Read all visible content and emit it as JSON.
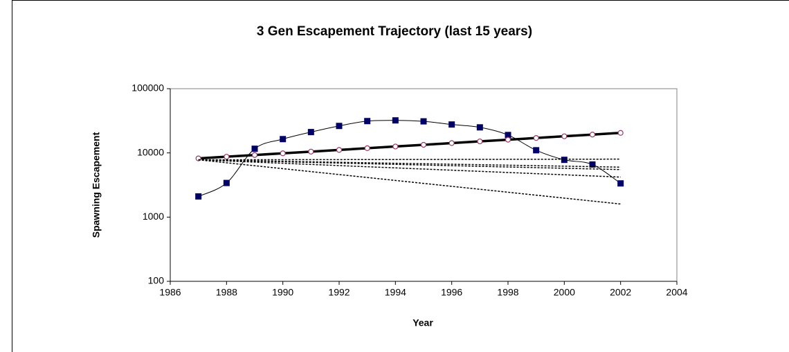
{
  "chart_data": {
    "type": "line",
    "title": "3 Gen  Escapement Trajectory (last 15 years)",
    "x_label": "Year",
    "y_label": "Spawning Escapement",
    "x": [
      1987,
      1988,
      1989,
      1990,
      1991,
      1992,
      1993,
      1994,
      1995,
      1996,
      1997,
      1998,
      1999,
      2000,
      2001,
      2002
    ],
    "series": [
      {
        "color": "#000066",
        "marker": "square",
        "style": "smooth",
        "values": [
          2100,
          3400,
          11600,
          16400,
          21100,
          26300,
          31300,
          32100,
          31000,
          27700,
          25000,
          19000,
          11000,
          7800,
          6600,
          3350
        ]
      },
      {
        "color": "#993366",
        "marker": "circle",
        "style": "thick",
        "values": [
          8200,
          8720,
          9270,
          9850,
          10470,
          11130,
          11830,
          12580,
          13370,
          14210,
          15110,
          16060,
          17070,
          18150,
          19290,
          20500
        ]
      },
      {
        "color": "#000000",
        "style": "dotted",
        "x": [
          1987,
          2002
        ],
        "values": [
          7800,
          8000
        ]
      },
      {
        "color": "#000000",
        "style": "dotted",
        "x": [
          1987,
          2002
        ],
        "values": [
          7800,
          6000
        ]
      },
      {
        "color": "#000000",
        "style": "dotted",
        "x": [
          1987,
          2002
        ],
        "values": [
          7800,
          5500
        ]
      },
      {
        "color": "#000000",
        "style": "dotted",
        "x": [
          1987,
          2002
        ],
        "values": [
          7800,
          4200
        ]
      },
      {
        "color": "#000000",
        "style": "dotted",
        "x": [
          1987,
          2002
        ],
        "values": [
          7800,
          1600
        ]
      }
    ],
    "xlim": [
      1986,
      2004
    ],
    "xticks": [
      1986,
      1988,
      1990,
      1992,
      1994,
      1996,
      1998,
      2000,
      2002,
      2004
    ],
    "ylim": [
      100,
      100000
    ],
    "yticks": [
      100,
      1000,
      10000,
      100000
    ],
    "log_y": true
  }
}
